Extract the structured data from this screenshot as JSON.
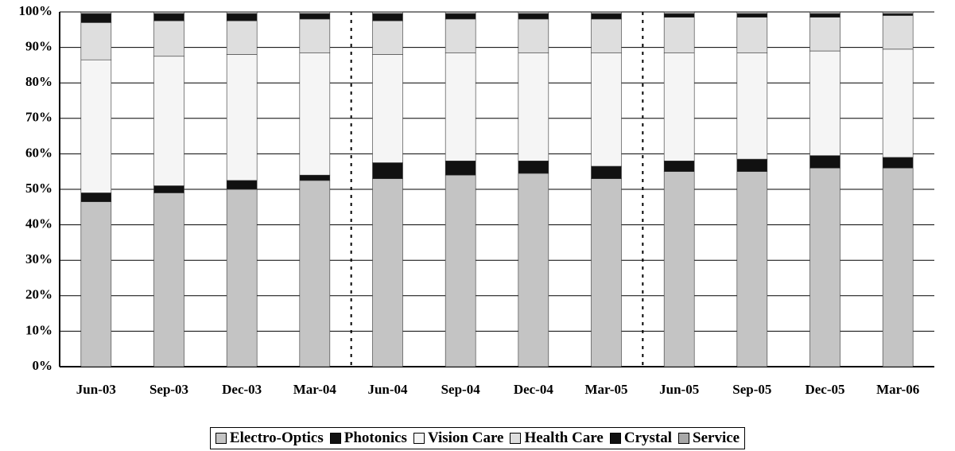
{
  "chart_data": {
    "type": "stacked_bar",
    "categories": [
      "Jun-03",
      "Sep-03",
      "Dec-03",
      "Mar-04",
      "Jun-04",
      "Sep-04",
      "Dec-04",
      "Mar-05",
      "Jun-05",
      "Sep-05",
      "Dec-05",
      "Mar-06"
    ],
    "series": [
      {
        "name": "Electro-Optics",
        "color": "#c4c4c4",
        "values": [
          46.5,
          49,
          50,
          52.5,
          53,
          54,
          54.5,
          53,
          55,
          55,
          56,
          56
        ]
      },
      {
        "name": "Photonics",
        "color": "#111111",
        "values": [
          2.5,
          2,
          2.5,
          1.5,
          4.5,
          4,
          3.5,
          3.5,
          3,
          3.5,
          3.5,
          3
        ]
      },
      {
        "name": "Vision Care",
        "color": "#f5f5f5",
        "values": [
          37.5,
          36.5,
          35.5,
          34.5,
          30.5,
          30.5,
          30.5,
          32,
          30.5,
          30,
          29.5,
          30.5
        ]
      },
      {
        "name": "Health Care",
        "color": "#dedede",
        "values": [
          10.5,
          10,
          9.5,
          9.5,
          9.5,
          9.5,
          9.5,
          9.5,
          10,
          10,
          9.5,
          9.5
        ]
      },
      {
        "name": "Crystal",
        "color": "#111111",
        "values": [
          2.5,
          2,
          2,
          1.5,
          2,
          1.5,
          1.5,
          1.5,
          1,
          1,
          1,
          0.5
        ]
      },
      {
        "name": "Service",
        "color": "#a8a8a8",
        "values": [
          0.5,
          0.5,
          0.5,
          0.5,
          0.5,
          0.5,
          0.5,
          0.5,
          0.5,
          0.5,
          0.5,
          0.5
        ]
      }
    ],
    "ylim": [
      0,
      100
    ],
    "yticks": [
      {
        "value": 0,
        "label": "0%"
      },
      {
        "value": 10,
        "label": "10%"
      },
      {
        "value": 20,
        "label": "20%"
      },
      {
        "value": 30,
        "label": "30%"
      },
      {
        "value": 40,
        "label": "40%"
      },
      {
        "value": 50,
        "label": "50%"
      },
      {
        "value": 60,
        "label": "60%"
      },
      {
        "value": 70,
        "label": "70%"
      },
      {
        "value": 80,
        "label": "80%"
      },
      {
        "value": 90,
        "label": "90%"
      },
      {
        "value": 100,
        "label": "100%"
      }
    ],
    "grid": true,
    "legend": "bottom"
  }
}
